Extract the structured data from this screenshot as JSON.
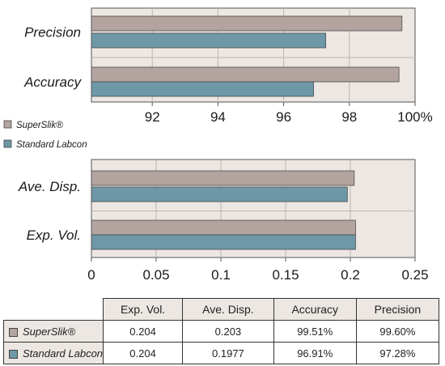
{
  "colors": {
    "superslik": "#b3a49f",
    "labcon": "#6e97a7",
    "panel": "#ece7e2"
  },
  "legend": [
    {
      "name": "SuperSlik®",
      "color": "#b3a49f"
    },
    {
      "name": "Standard Labcon",
      "color": "#6e97a7"
    }
  ],
  "chart_data": [
    {
      "type": "bar",
      "orientation": "horizontal",
      "categories": [
        "Precision",
        "Accuracy"
      ],
      "series": [
        {
          "name": "SuperSlik®",
          "values": [
            99.6,
            99.51
          ]
        },
        {
          "name": "Standard Labcon",
          "values": [
            97.28,
            96.91
          ]
        }
      ],
      "xlim": [
        90,
        100
      ],
      "ticks": [
        {
          "v": 92,
          "label": "92"
        },
        {
          "v": 94,
          "label": "94"
        },
        {
          "v": 96,
          "label": "96"
        },
        {
          "v": 98,
          "label": "98"
        },
        {
          "v": 100,
          "label": "100%"
        }
      ],
      "grid": true
    },
    {
      "type": "bar",
      "orientation": "horizontal",
      "categories": [
        "Ave. Disp.",
        "Exp. Vol."
      ],
      "series": [
        {
          "name": "SuperSlik®",
          "values": [
            0.203,
            0.204
          ]
        },
        {
          "name": "Standard Labcon",
          "values": [
            0.1977,
            0.204
          ]
        }
      ],
      "xlim": [
        0,
        0.25
      ],
      "ticks": [
        {
          "v": 0,
          "label": "0"
        },
        {
          "v": 0.05,
          "label": "0.05"
        },
        {
          "v": 0.1,
          "label": "0.1"
        },
        {
          "v": 0.15,
          "label": "0.15"
        },
        {
          "v": 0.2,
          "label": "0.2"
        },
        {
          "v": 0.25,
          "label": "0.25"
        }
      ],
      "grid": true
    }
  ],
  "table": {
    "headers": [
      "Exp. Vol.",
      "Ave. Disp.",
      "Accuracy",
      "Precision"
    ],
    "rows": [
      {
        "name": "SuperSlik®",
        "color": "#b3a49f",
        "cells": [
          "0.204",
          "0.203",
          "99.51%",
          "99.60%"
        ]
      },
      {
        "name": "Standard Labcon",
        "color": "#6e97a7",
        "cells": [
          "0.204",
          "0.1977",
          "96.91%",
          "97.28%"
        ]
      }
    ]
  }
}
